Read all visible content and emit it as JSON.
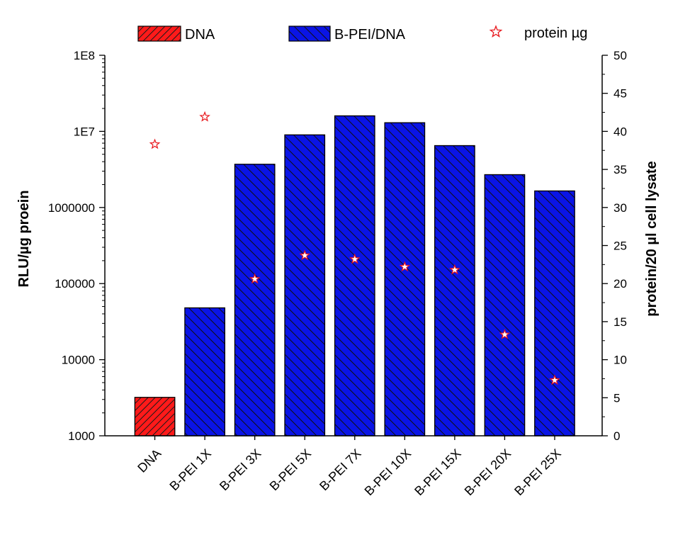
{
  "chart_data": {
    "type": "bar",
    "categories": [
      "DNA",
      "B-PEI 1X",
      "B-PEI 3X",
      "B-PEI 5X",
      "B-PEI 7X",
      "B-PEI 10X",
      "B-PEI 15X",
      "B-PEI 20X",
      "B-PEI 25X"
    ],
    "left_axis": {
      "label": "RLU/µg proein",
      "scale": "log",
      "range": [
        1000,
        100000000
      ],
      "tick_labels": [
        "1000",
        "10000",
        "100000",
        "1000000",
        "1E7",
        "1E8"
      ]
    },
    "right_axis": {
      "label": "protein/20 µl cell lysate",
      "scale": "linear",
      "range": [
        0,
        50
      ],
      "tick_labels": [
        "0",
        "5",
        "10",
        "15",
        "20",
        "25",
        "30",
        "35",
        "40",
        "45",
        "50"
      ]
    },
    "series": [
      {
        "name": "DNA",
        "type": "bar",
        "axis": "left",
        "color": "#ff1a1a",
        "hatch": "forward",
        "values": [
          3200,
          null,
          null,
          null,
          null,
          null,
          null,
          null,
          null
        ]
      },
      {
        "name": "B-PEI/DNA",
        "type": "bar",
        "axis": "left",
        "color": "#0a14e6",
        "hatch": "back",
        "values": [
          null,
          48000,
          3700000,
          9000000,
          16000000,
          13000000,
          6500000,
          2700000,
          1650000
        ]
      },
      {
        "name": "protein µg",
        "type": "scatter",
        "axis": "right",
        "marker": "star",
        "color": "#e8161b",
        "values": [
          38.3,
          41.9,
          20.6,
          23.7,
          23.2,
          22.2,
          21.8,
          13.3,
          7.3
        ]
      }
    ],
    "legend": {
      "placement": "top",
      "entries": [
        "DNA",
        "B-PEI/DNA",
        "protein µg"
      ]
    },
    "grid": false
  }
}
